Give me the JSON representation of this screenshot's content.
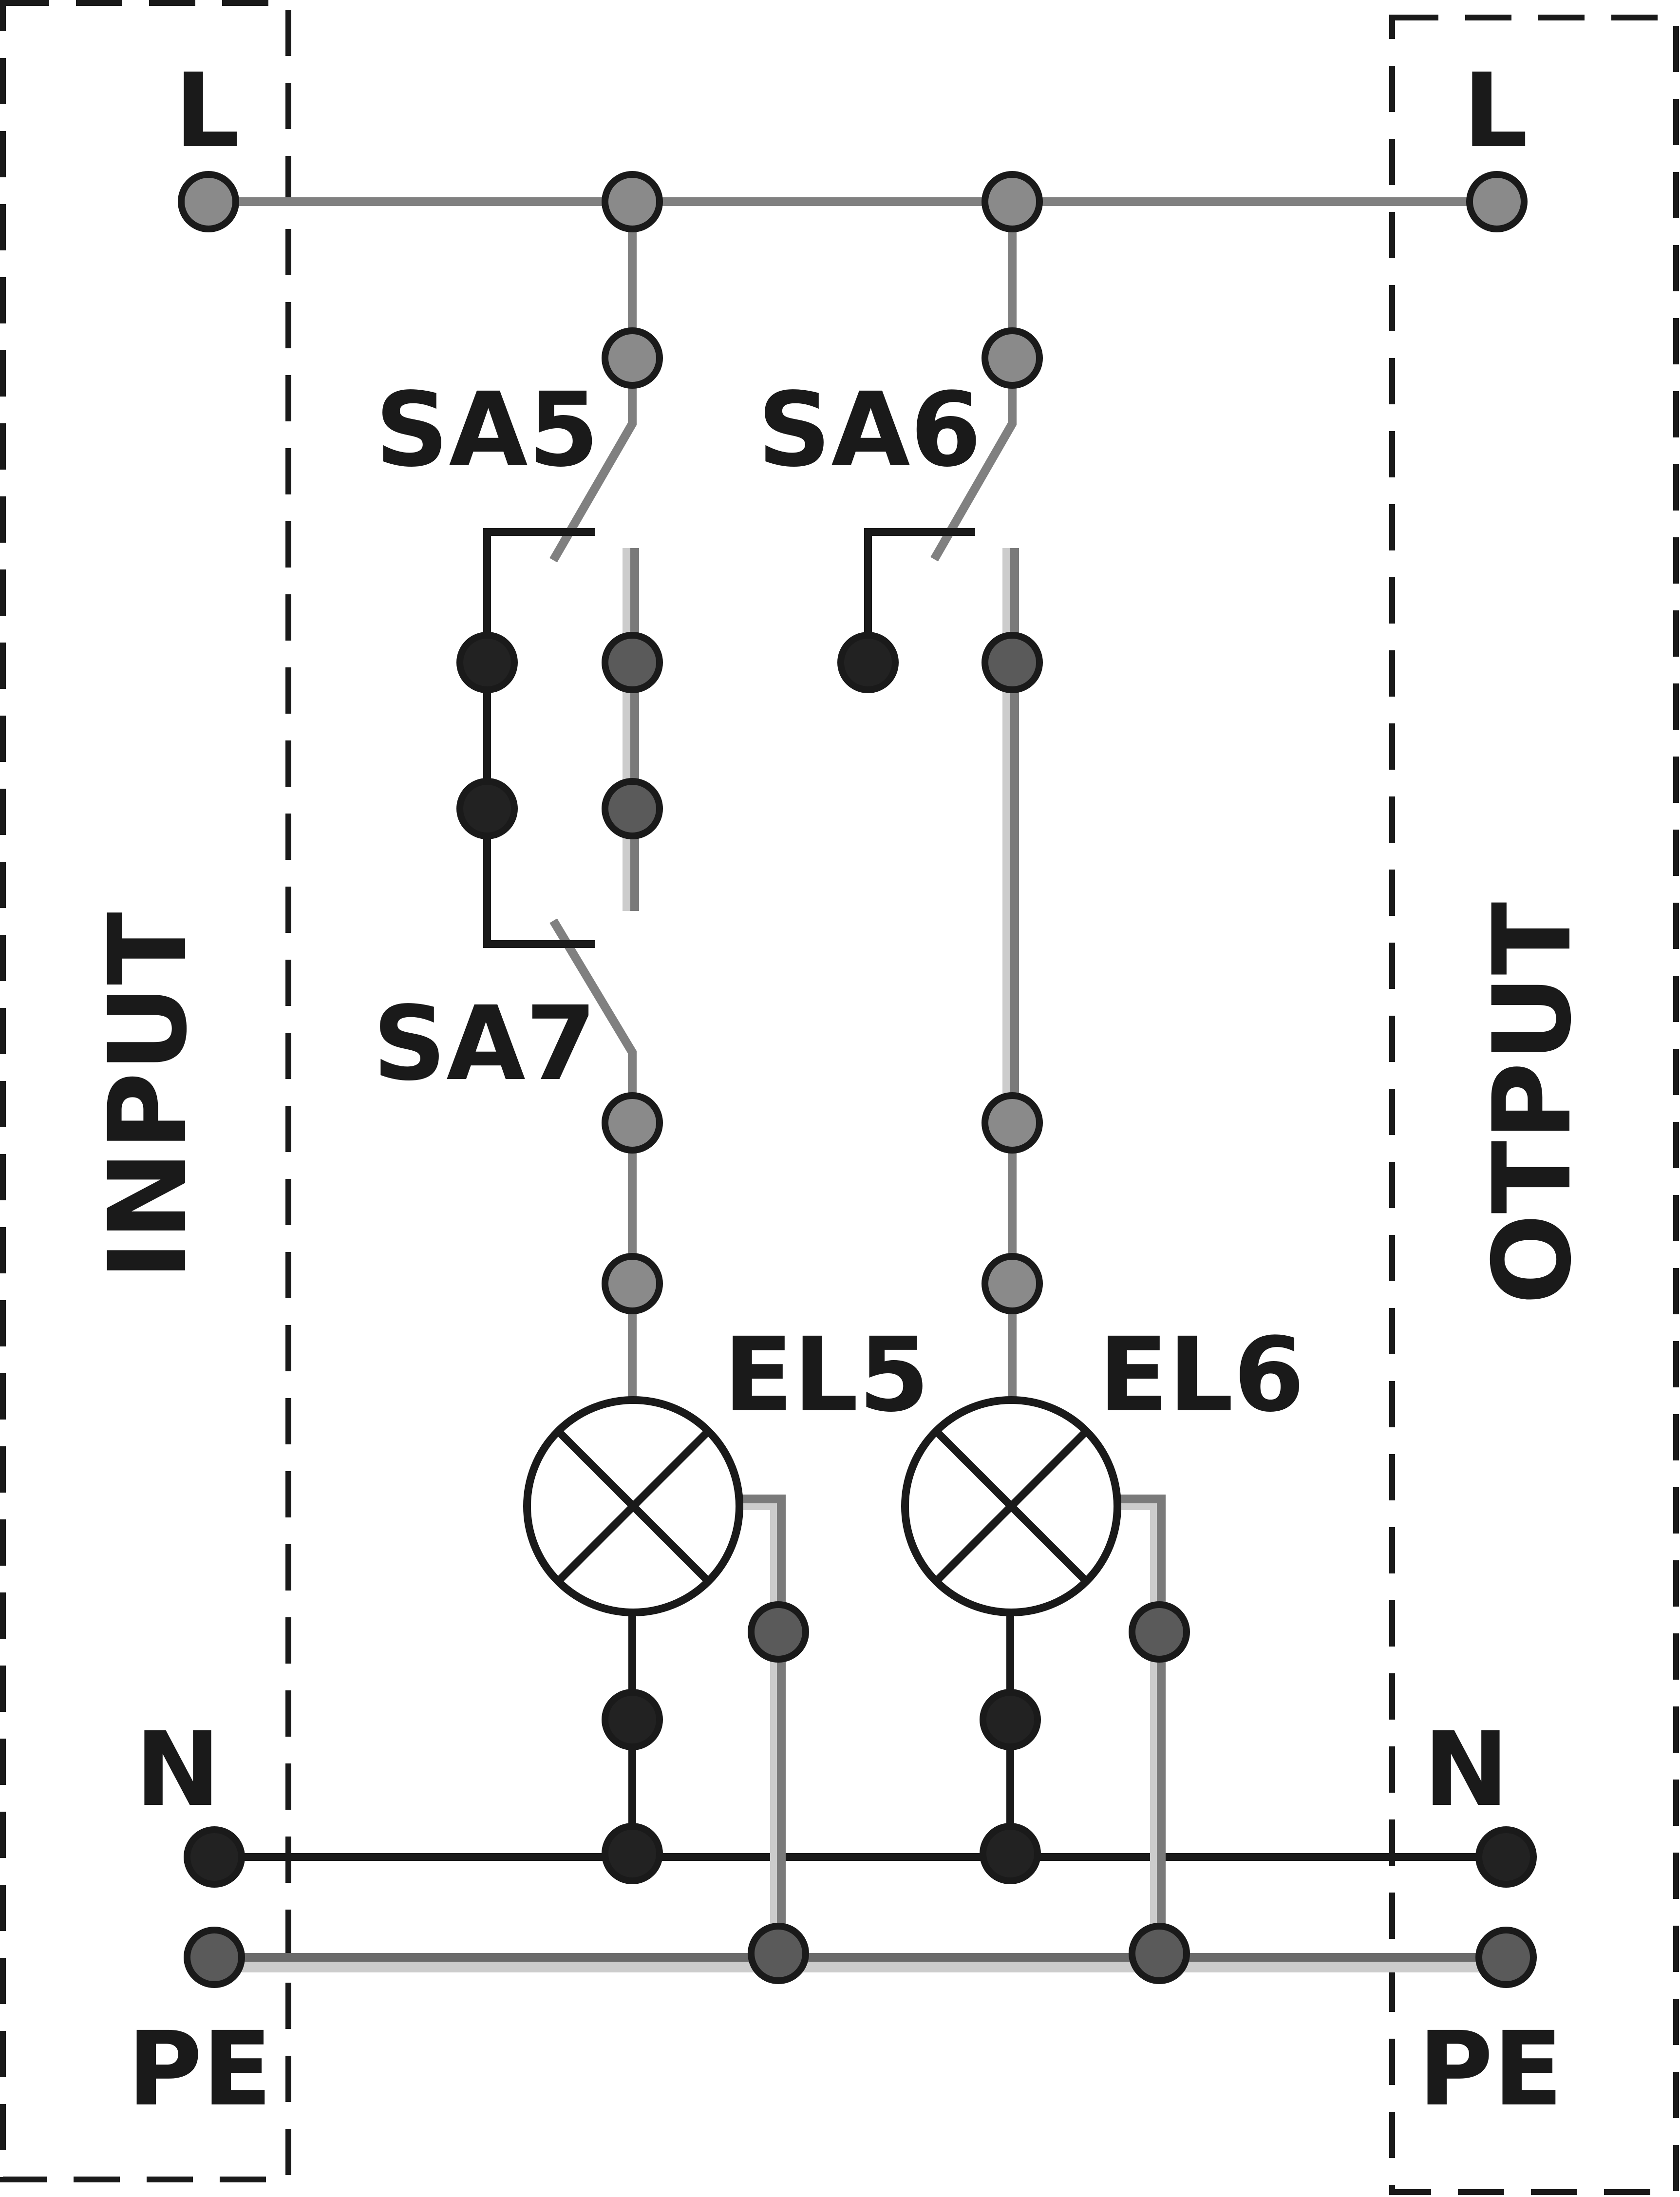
{
  "blocks": {
    "input": {
      "label": "INPUT"
    },
    "output": {
      "label": "OTPUT"
    }
  },
  "terminals": {
    "input_l": "L",
    "input_n": "N",
    "input_pe": "PE",
    "output_l": "L",
    "output_n": "N",
    "output_pe": "PE"
  },
  "components": {
    "sa5": "SA5",
    "sa6": "SA6",
    "sa7": "SA7",
    "el5": "EL5",
    "el6": "EL6"
  },
  "colors": {
    "phase": "#808080",
    "neutral": "#1a1a1a",
    "pe": "#6a6a6a",
    "pe_highlight": "#cccccc",
    "node_light": "#8a8a8a",
    "node_dark": "#5a5a5a",
    "node_black": "#222222",
    "outline": "#1a1a1a",
    "dashes": "#1a1a1a"
  }
}
